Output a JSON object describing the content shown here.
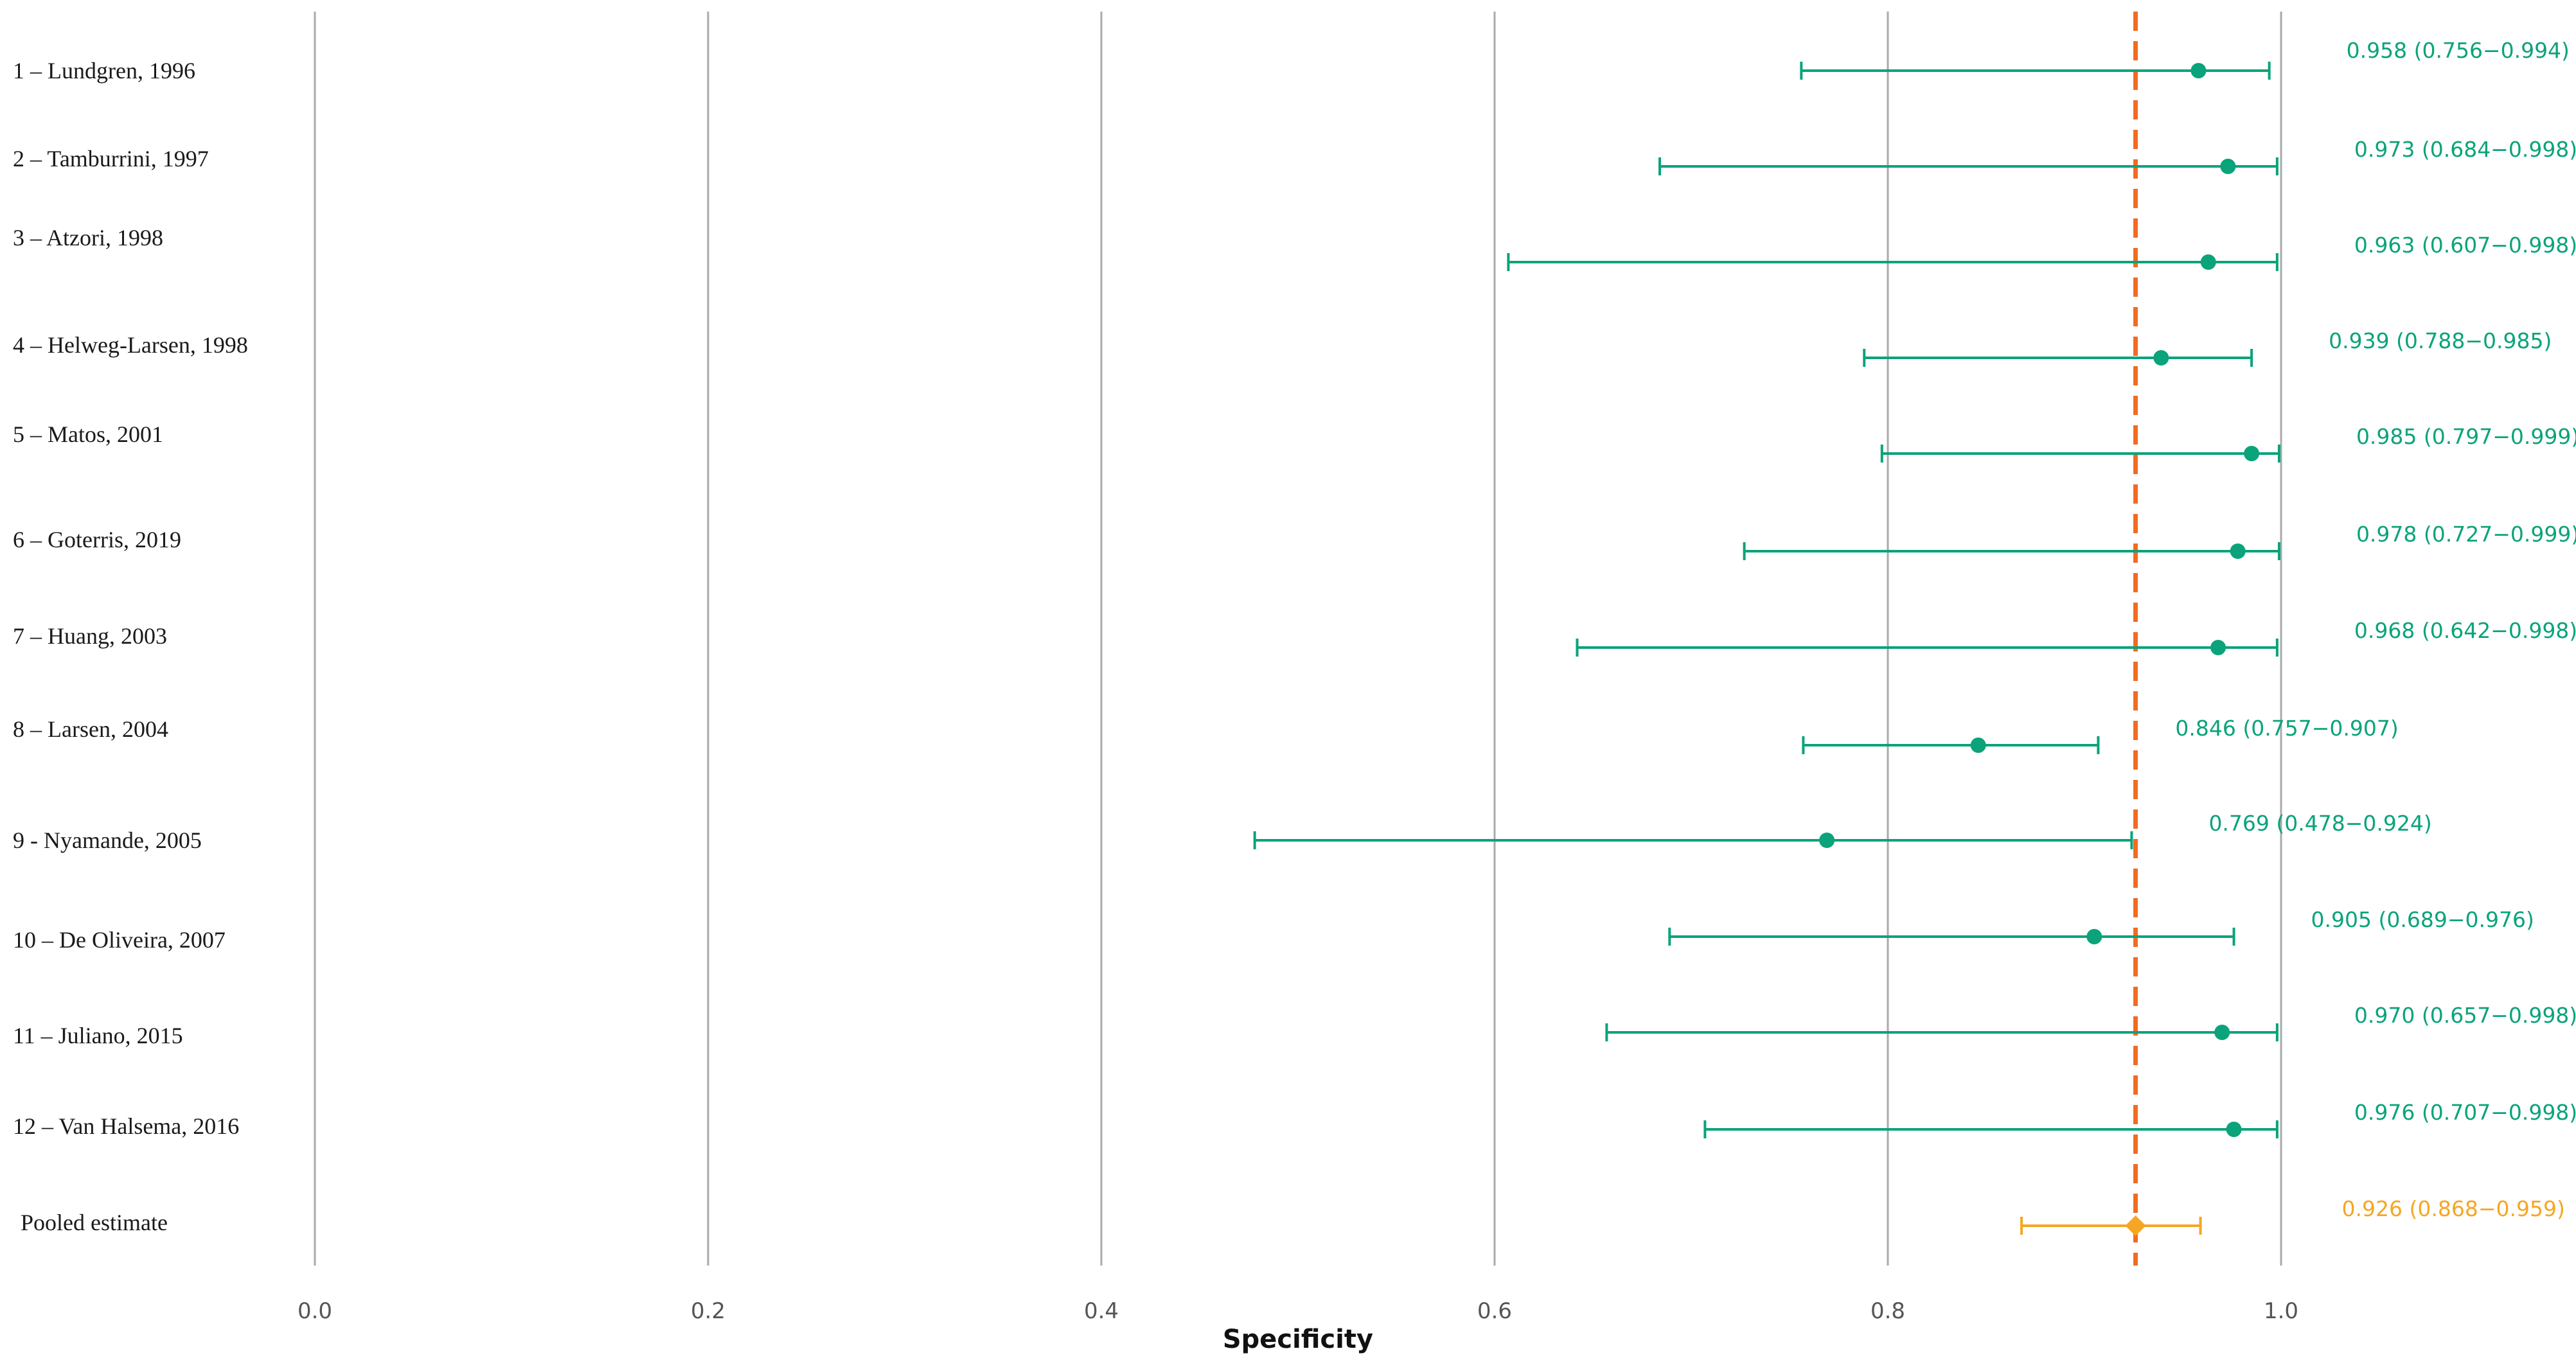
{
  "chart_data": {
    "type": "scatter",
    "title": "",
    "xlabel": "Specificity",
    "ylabel": "",
    "xlim": [
      -0.155,
      1.3
    ],
    "xticks": [
      0.0,
      0.2,
      0.4,
      0.6,
      0.8,
      1.0
    ],
    "xtick_labels": [
      "0.0",
      "0.2",
      "0.4",
      "0.6",
      "0.8",
      "1.0"
    ],
    "grid": "vertical",
    "reference_line": {
      "value": 0.926,
      "style": "dashed",
      "color": "#F26B21"
    },
    "colors": {
      "study": "#0AA37A",
      "pooled": "#F5A623",
      "grid": "#AAAAAA",
      "reference": "#F26B21"
    },
    "studies": [
      {
        "label": "1 – Lundgren, 1996",
        "estimate": 0.958,
        "lower": 0.756,
        "upper": 0.994,
        "text": "0.958 (0.756−0.994)"
      },
      {
        "label": "2 – Tamburrini, 1997",
        "estimate": 0.973,
        "lower": 0.684,
        "upper": 0.998,
        "text": "0.973 (0.684−0.998)"
      },
      {
        "label": "3 – Atzori, 1998",
        "estimate": 0.963,
        "lower": 0.607,
        "upper": 0.998,
        "text": "0.963 (0.607−0.998)"
      },
      {
        "label": "4 – Helweg-Larsen, 1998",
        "estimate": 0.939,
        "lower": 0.788,
        "upper": 0.985,
        "text": "0.939 (0.788−0.985)"
      },
      {
        "label": "5 – Matos, 2001",
        "estimate": 0.985,
        "lower": 0.797,
        "upper": 0.999,
        "text": "0.985 (0.797−0.999)"
      },
      {
        "label": "6 – Goterris, 2019",
        "estimate": 0.978,
        "lower": 0.727,
        "upper": 0.999,
        "text": "0.978 (0.727−0.999)"
      },
      {
        "label": "7 – Huang, 2003",
        "estimate": 0.968,
        "lower": 0.642,
        "upper": 0.998,
        "text": "0.968 (0.642−0.998)"
      },
      {
        "label": "8 – Larsen, 2004",
        "estimate": 0.846,
        "lower": 0.757,
        "upper": 0.907,
        "text": "0.846 (0.757−0.907)"
      },
      {
        "label": "9 - Nyamande, 2005",
        "estimate": 0.769,
        "lower": 0.478,
        "upper": 0.924,
        "text": "0.769 (0.478−0.924)"
      },
      {
        "label": "10 – De Oliveira, 2007",
        "estimate": 0.905,
        "lower": 0.689,
        "upper": 0.976,
        "text": "0.905 (0.689−0.976)"
      },
      {
        "label": "11 – Juliano, 2015",
        "estimate": 0.97,
        "lower": 0.657,
        "upper": 0.998,
        "text": "0.970 (0.657−0.998)"
      },
      {
        "label": "12 – Van Halsema, 2016",
        "estimate": 0.976,
        "lower": 0.707,
        "upper": 0.998,
        "text": "0.976 (0.707−0.998)"
      },
      {
        "label": "Pooled estimate",
        "estimate": 0.926,
        "lower": 0.868,
        "upper": 0.959,
        "text": "0.926 (0.868−0.959)",
        "pooled": true
      }
    ]
  }
}
